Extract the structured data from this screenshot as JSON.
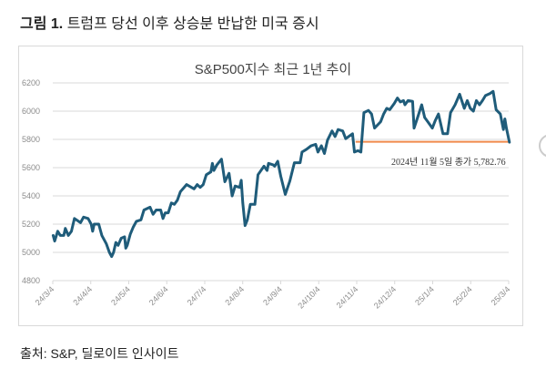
{
  "figure": {
    "label": "그림 1.",
    "caption": "트럼프 당선 이후 상승분 반납한 미국 증시"
  },
  "source": "출처: S&P, 딜로이트 인사이트",
  "chart_data": {
    "type": "line",
    "title": "S&P500지수 최근 1년 추이",
    "xlabel": "",
    "ylabel": "",
    "ylim": [
      4800,
      6200
    ],
    "yticks": [
      "4800",
      "5000",
      "5200",
      "5400",
      "5600",
      "5800",
      "6000",
      "6200"
    ],
    "xticks": [
      "24/3/4",
      "24/4/4",
      "24/5/4",
      "24/6/4",
      "24/7/4",
      "24/8/4",
      "24/9/4",
      "24/10/4",
      "24/11/4",
      "24/12/4",
      "25/1/4",
      "25/2/4",
      "25/3/4"
    ],
    "x_unit": "months since 2024-03-04",
    "grid": true,
    "colors": {
      "series": "#1f5c7a",
      "reference": "#f08a4b",
      "grid": "#d9d9d9",
      "axis_text": "#8c8c8c"
    },
    "series": [
      {
        "name": "S&P500",
        "points": [
          [
            0.01,
            5120
          ],
          [
            0.05,
            5080
          ],
          [
            0.13,
            5150
          ],
          [
            0.2,
            5120
          ],
          [
            0.29,
            5120
          ],
          [
            0.33,
            5170
          ],
          [
            0.41,
            5120
          ],
          [
            0.49,
            5150
          ],
          [
            0.57,
            5240
          ],
          [
            0.73,
            5210
          ],
          [
            0.81,
            5250
          ],
          [
            0.93,
            5240
          ],
          [
            1.01,
            5200
          ],
          [
            1.05,
            5150
          ],
          [
            1.09,
            5200
          ],
          [
            1.21,
            5200
          ],
          [
            1.29,
            5120
          ],
          [
            1.41,
            5060
          ],
          [
            1.49,
            5000
          ],
          [
            1.55,
            4970
          ],
          [
            1.6,
            5000
          ],
          [
            1.66,
            5070
          ],
          [
            1.72,
            5050
          ],
          [
            1.8,
            5100
          ],
          [
            1.89,
            5110
          ],
          [
            1.92,
            5030
          ],
          [
            1.96,
            5050
          ],
          [
            2.04,
            5130
          ],
          [
            2.12,
            5180
          ],
          [
            2.2,
            5220
          ],
          [
            2.32,
            5230
          ],
          [
            2.4,
            5300
          ],
          [
            2.56,
            5320
          ],
          [
            2.64,
            5270
          ],
          [
            2.72,
            5300
          ],
          [
            2.84,
            5300
          ],
          [
            2.9,
            5240
          ],
          [
            2.96,
            5280
          ],
          [
            3.04,
            5280
          ],
          [
            3.12,
            5350
          ],
          [
            3.2,
            5340
          ],
          [
            3.28,
            5370
          ],
          [
            3.36,
            5430
          ],
          [
            3.52,
            5480
          ],
          [
            3.72,
            5450
          ],
          [
            3.8,
            5480
          ],
          [
            3.88,
            5460
          ],
          [
            3.96,
            5480
          ],
          [
            4.04,
            5550
          ],
          [
            4.16,
            5570
          ],
          [
            4.2,
            5630
          ],
          [
            4.24,
            5580
          ],
          [
            4.32,
            5620
          ],
          [
            4.44,
            5660
          ],
          [
            4.53,
            5500
          ],
          [
            4.64,
            5560
          ],
          [
            4.72,
            5400
          ],
          [
            4.8,
            5470
          ],
          [
            4.92,
            5460
          ],
          [
            4.96,
            5510
          ],
          [
            5.0,
            5350
          ],
          [
            5.06,
            5190
          ],
          [
            5.12,
            5230
          ],
          [
            5.2,
            5340
          ],
          [
            5.32,
            5340
          ],
          [
            5.4,
            5550
          ],
          [
            5.56,
            5610
          ],
          [
            5.64,
            5580
          ],
          [
            5.68,
            5630
          ],
          [
            5.8,
            5620
          ],
          [
            5.84,
            5610
          ],
          [
            5.92,
            5645
          ],
          [
            6.0,
            5540
          ],
          [
            6.12,
            5410
          ],
          [
            6.24,
            5505
          ],
          [
            6.36,
            5635
          ],
          [
            6.51,
            5635
          ],
          [
            6.56,
            5710
          ],
          [
            6.68,
            5730
          ],
          [
            6.8,
            5755
          ],
          [
            6.92,
            5765
          ],
          [
            6.98,
            5710
          ],
          [
            7.07,
            5755
          ],
          [
            7.15,
            5700
          ],
          [
            7.23,
            5795
          ],
          [
            7.35,
            5860
          ],
          [
            7.43,
            5820
          ],
          [
            7.51,
            5870
          ],
          [
            7.63,
            5860
          ],
          [
            7.71,
            5805
          ],
          [
            7.89,
            5840
          ],
          [
            7.94,
            5710
          ],
          [
            8.03,
            5720
          ],
          [
            8.11,
            5710
          ],
          [
            8.19,
            5990
          ],
          [
            8.31,
            6005
          ],
          [
            8.39,
            5980
          ],
          [
            8.47,
            5880
          ],
          [
            8.63,
            5925
          ],
          [
            8.71,
            5980
          ],
          [
            8.79,
            6020
          ],
          [
            8.87,
            6010
          ],
          [
            8.99,
            6055
          ],
          [
            9.07,
            6093
          ],
          [
            9.15,
            6065
          ],
          [
            9.23,
            6075
          ],
          [
            9.27,
            6045
          ],
          [
            9.35,
            6075
          ],
          [
            9.47,
            6070
          ],
          [
            9.51,
            5880
          ],
          [
            9.59,
            5945
          ],
          [
            9.71,
            6045
          ],
          [
            9.79,
            5955
          ],
          [
            9.87,
            5925
          ],
          [
            9.99,
            5880
          ],
          [
            10.07,
            5935
          ],
          [
            10.15,
            5980
          ],
          [
            10.27,
            5840
          ],
          [
            10.39,
            5840
          ],
          [
            10.47,
            5990
          ],
          [
            10.59,
            6045
          ],
          [
            10.71,
            6120
          ],
          [
            10.83,
            6020
          ],
          [
            10.91,
            6075
          ],
          [
            10.99,
            6020
          ],
          [
            11.07,
            6000
          ],
          [
            11.15,
            6075
          ],
          [
            11.23,
            6045
          ],
          [
            11.31,
            6075
          ],
          [
            11.39,
            6110
          ],
          [
            11.51,
            6125
          ],
          [
            11.59,
            6140
          ],
          [
            11.67,
            6010
          ],
          [
            11.78,
            5980
          ],
          [
            11.86,
            5870
          ],
          [
            11.9,
            5945
          ],
          [
            11.94,
            5880
          ],
          [
            12.02,
            5780
          ]
        ]
      }
    ],
    "reference_line": {
      "value": 5782.76,
      "x_start": 7.97,
      "x_end": 12.02
    },
    "annotations": [
      {
        "text": "2024년 11월 5일 종가 5,782.76"
      }
    ]
  }
}
